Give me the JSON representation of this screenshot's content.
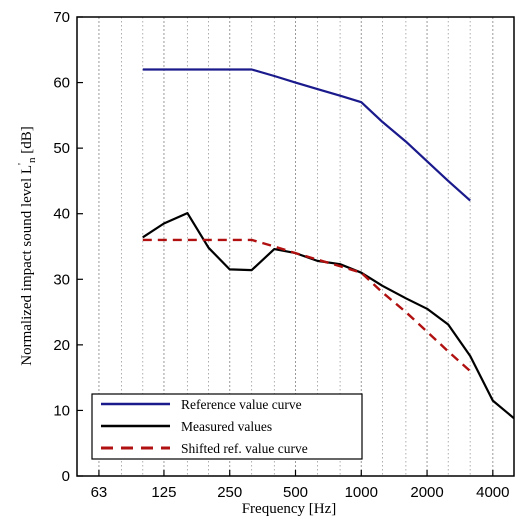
{
  "chart_data": {
    "type": "line",
    "title": "",
    "xlabel": "Frequency [Hz]",
    "ylabel": "Normalized impact sound level L'n [dB]",
    "ylabel_main": "Normalized impact sound level L",
    "ylabel_prime": "'",
    "ylabel_sub": "n",
    "ylabel_unit": " [dB]",
    "x_scale": "log",
    "xlim": [
      50,
      5000
    ],
    "ylim": [
      0,
      70
    ],
    "x_ticks": [
      63,
      125,
      250,
      500,
      1000,
      2000,
      4000
    ],
    "x_tick_labels": [
      "63",
      "125",
      "250",
      "500",
      "1000",
      "2000",
      "4000"
    ],
    "y_ticks": [
      0,
      10,
      20,
      30,
      40,
      50,
      60,
      70
    ],
    "y_tick_labels": [
      "0",
      "10",
      "20",
      "30",
      "40",
      "50",
      "60",
      "70"
    ],
    "grid": "vertical, one-third octave",
    "legend_position": "bottom-left",
    "series": [
      {
        "name": "Reference value curve",
        "color": "#1a1a8c",
        "style": "solid",
        "x": [
          100,
          125,
          160,
          200,
          250,
          315,
          400,
          500,
          630,
          800,
          1000,
          1250,
          1600,
          2000,
          2500,
          3150
        ],
        "y": [
          62,
          62,
          62,
          62,
          62,
          62,
          61,
          60,
          59,
          58,
          57,
          54,
          51,
          48,
          45,
          42
        ]
      },
      {
        "name": "Measured values",
        "color": "#000000",
        "style": "solid",
        "x": [
          100,
          125,
          160,
          200,
          250,
          315,
          400,
          500,
          630,
          800,
          1000,
          1250,
          1600,
          2000,
          2500,
          3150,
          4000,
          5000
        ],
        "y": [
          36.4,
          38.5,
          40.1,
          34.8,
          31.5,
          31.4,
          34.6,
          34.0,
          32.8,
          32.3,
          31.0,
          29.0,
          27.1,
          25.5,
          23.1,
          18.3,
          11.5,
          8.8
        ]
      },
      {
        "name": "Shifted ref. value curve",
        "color": "#b01010",
        "style": "dashed",
        "x": [
          100,
          125,
          160,
          200,
          250,
          315,
          400,
          500,
          630,
          800,
          1000,
          1250,
          1600,
          2000,
          2500,
          3150
        ],
        "y": [
          36,
          36,
          36,
          36,
          36,
          36,
          35,
          34,
          33,
          32,
          31,
          28,
          25,
          22,
          19,
          16
        ]
      }
    ]
  }
}
